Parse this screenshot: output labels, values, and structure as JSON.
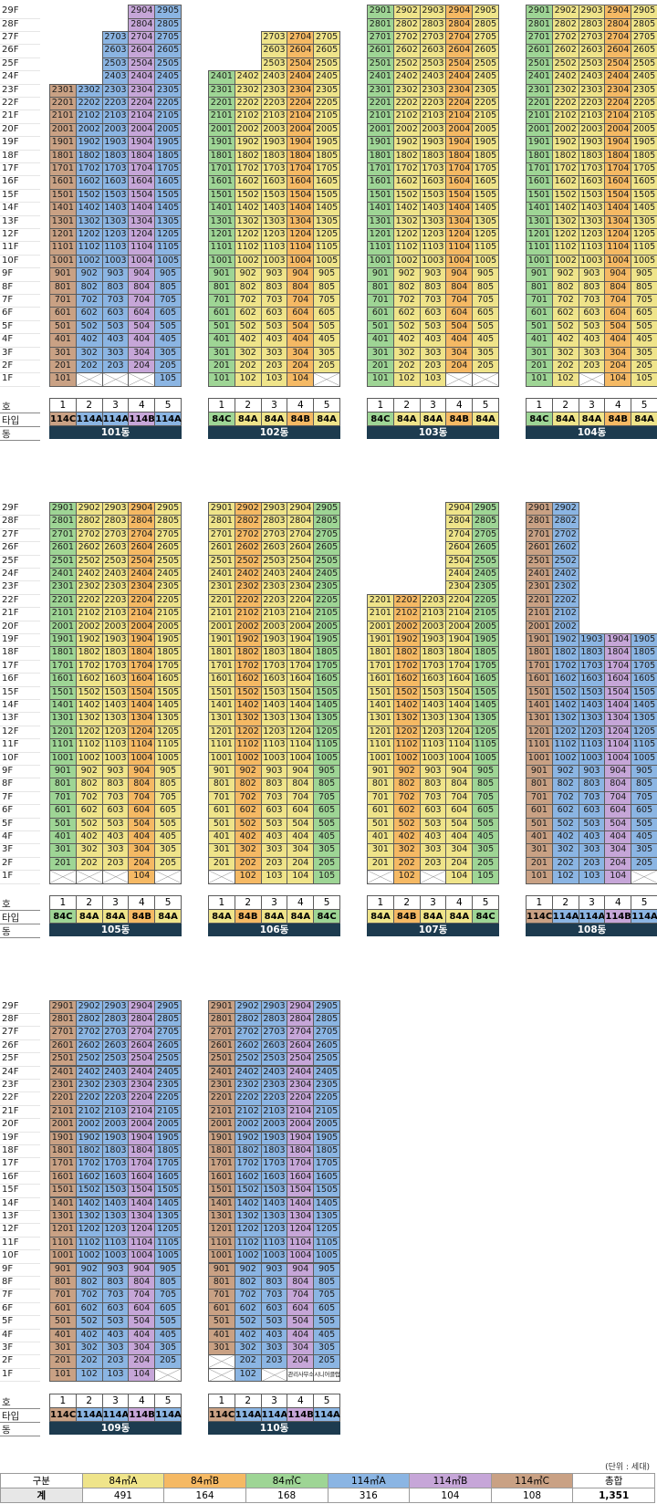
{
  "labels": {
    "ho": "호",
    "type": "타입",
    "dong": "동",
    "unit_note": "(단위 : 세대)"
  },
  "colors": {
    "84A": "#efe48a",
    "84B": "#f5b964",
    "84C": "#9ed595",
    "114A": "#8bb5e3",
    "114B": "#c6a6d8",
    "114C": "#c9a184"
  },
  "floors": [
    "1F",
    "2F",
    "3F",
    "4F",
    "5F",
    "6F",
    "7F",
    "8F",
    "9F",
    "10F",
    "11F",
    "12F",
    "13F",
    "14F",
    "15F",
    "16F",
    "17F",
    "18F",
    "19F",
    "20F",
    "21F",
    "22F",
    "23F",
    "24F",
    "25F",
    "26F",
    "27F",
    "28F",
    "29F"
  ],
  "buildings": [
    {
      "id": "101",
      "name": "101동",
      "lines": [
        "1",
        "2",
        "3",
        "4",
        "5"
      ],
      "types": [
        "114C",
        "114A",
        "114A",
        "114B",
        "114A"
      ],
      "ranges": [
        [
          1,
          23
        ],
        [
          2,
          23
        ],
        [
          2,
          27
        ],
        [
          2,
          29
        ],
        [
          1,
          29
        ]
      ],
      "x": [
        "1F:2",
        "1F:3",
        "1F:4"
      ],
      "specialText": {}
    },
    {
      "id": "102",
      "name": "102동",
      "lines": [
        "1",
        "2",
        "3",
        "4",
        "5"
      ],
      "types": [
        "84C",
        "84A",
        "84A",
        "84B",
        "84A"
      ],
      "ranges": [
        [
          1,
          24
        ],
        [
          1,
          24
        ],
        [
          1,
          27
        ],
        [
          1,
          27
        ],
        [
          2,
          27
        ]
      ],
      "x": [
        "1F:5"
      ],
      "specialText": {}
    },
    {
      "id": "103",
      "name": "103동",
      "lines": [
        "1",
        "2",
        "3",
        "4",
        "5"
      ],
      "types": [
        "84C",
        "84A",
        "84A",
        "84B",
        "84A"
      ],
      "ranges": [
        [
          1,
          29
        ],
        [
          1,
          29
        ],
        [
          1,
          29
        ],
        [
          2,
          29
        ],
        [
          2,
          29
        ]
      ],
      "x": [
        "1F:4",
        "1F:5"
      ],
      "specialText": {}
    },
    {
      "id": "104",
      "name": "104동",
      "lines": [
        "1",
        "2",
        "3",
        "4",
        "5"
      ],
      "types": [
        "84C",
        "84A",
        "84A",
        "84B",
        "84A"
      ],
      "ranges": [
        [
          1,
          29
        ],
        [
          1,
          29
        ],
        [
          2,
          29
        ],
        [
          1,
          29
        ],
        [
          1,
          29
        ]
      ],
      "x": [
        "1F:3"
      ],
      "specialText": {}
    },
    {
      "id": "105",
      "name": "105동",
      "lines": [
        "1",
        "2",
        "3",
        "4",
        "5"
      ],
      "types": [
        "84C",
        "84A",
        "84A",
        "84B",
        "84A"
      ],
      "ranges": [
        [
          2,
          29
        ],
        [
          2,
          29
        ],
        [
          2,
          29
        ],
        [
          1,
          29
        ],
        [
          2,
          29
        ]
      ],
      "x": [
        "1F:1",
        "1F:2",
        "1F:3",
        "1F:5"
      ],
      "specialText": {}
    },
    {
      "id": "106",
      "name": "106동",
      "lines": [
        "1",
        "2",
        "3",
        "4",
        "5"
      ],
      "types": [
        "84A",
        "84B",
        "84A",
        "84A",
        "84C"
      ],
      "ranges": [
        [
          2,
          29
        ],
        [
          1,
          29
        ],
        [
          1,
          29
        ],
        [
          1,
          29
        ],
        [
          1,
          29
        ]
      ],
      "x": [
        "1F:1"
      ],
      "specialText": {}
    },
    {
      "id": "107",
      "name": "107동",
      "lines": [
        "1",
        "2",
        "3",
        "4",
        "5"
      ],
      "types": [
        "84A",
        "84B",
        "84A",
        "84A",
        "84C"
      ],
      "ranges": [
        [
          2,
          22
        ],
        [
          1,
          22
        ],
        [
          2,
          22
        ],
        [
          1,
          29
        ],
        [
          1,
          29
        ]
      ],
      "x": [
        "1F:1",
        "1F:3"
      ],
      "specialText": {}
    },
    {
      "id": "108",
      "name": "108동",
      "lines": [
        "1",
        "2",
        "3",
        "4",
        "5"
      ],
      "types": [
        "114C",
        "114A",
        "114A",
        "114B",
        "114A"
      ],
      "ranges": [
        [
          1,
          29
        ],
        [
          1,
          29
        ],
        [
          1,
          19
        ],
        [
          1,
          19
        ],
        [
          2,
          19
        ]
      ],
      "x": [
        "1F:5"
      ],
      "specialText": {}
    },
    {
      "id": "109",
      "name": "109동",
      "lines": [
        "1",
        "2",
        "3",
        "4",
        "5"
      ],
      "types": [
        "114C",
        "114A",
        "114A",
        "114B",
        "114A"
      ],
      "ranges": [
        [
          1,
          29
        ],
        [
          1,
          29
        ],
        [
          1,
          29
        ],
        [
          1,
          29
        ],
        [
          2,
          29
        ]
      ],
      "x": [
        "1F:5"
      ],
      "specialText": {}
    },
    {
      "id": "110",
      "name": "110동",
      "lines": [
        "1",
        "2",
        "3",
        "4",
        "5"
      ],
      "types": [
        "114C",
        "114A",
        "114A",
        "114B",
        "114A"
      ],
      "ranges": [
        [
          3,
          29
        ],
        [
          1,
          29
        ],
        [
          2,
          29
        ],
        [
          2,
          29
        ],
        [
          2,
          29
        ]
      ],
      "x": [
        "1F:1",
        "1F:3",
        "2F:1"
      ],
      "specialText": {
        "1F:4": "관리사무소",
        "1F:5": "시니어클럽"
      }
    }
  ],
  "summary": {
    "headers": [
      "구분",
      "84㎡A",
      "84㎡B",
      "84㎡C",
      "114㎡A",
      "114㎡B",
      "114㎡C",
      "총합"
    ],
    "row_label": "계",
    "values": [
      "491",
      "164",
      "168",
      "316",
      "104",
      "108",
      "1,351"
    ]
  }
}
